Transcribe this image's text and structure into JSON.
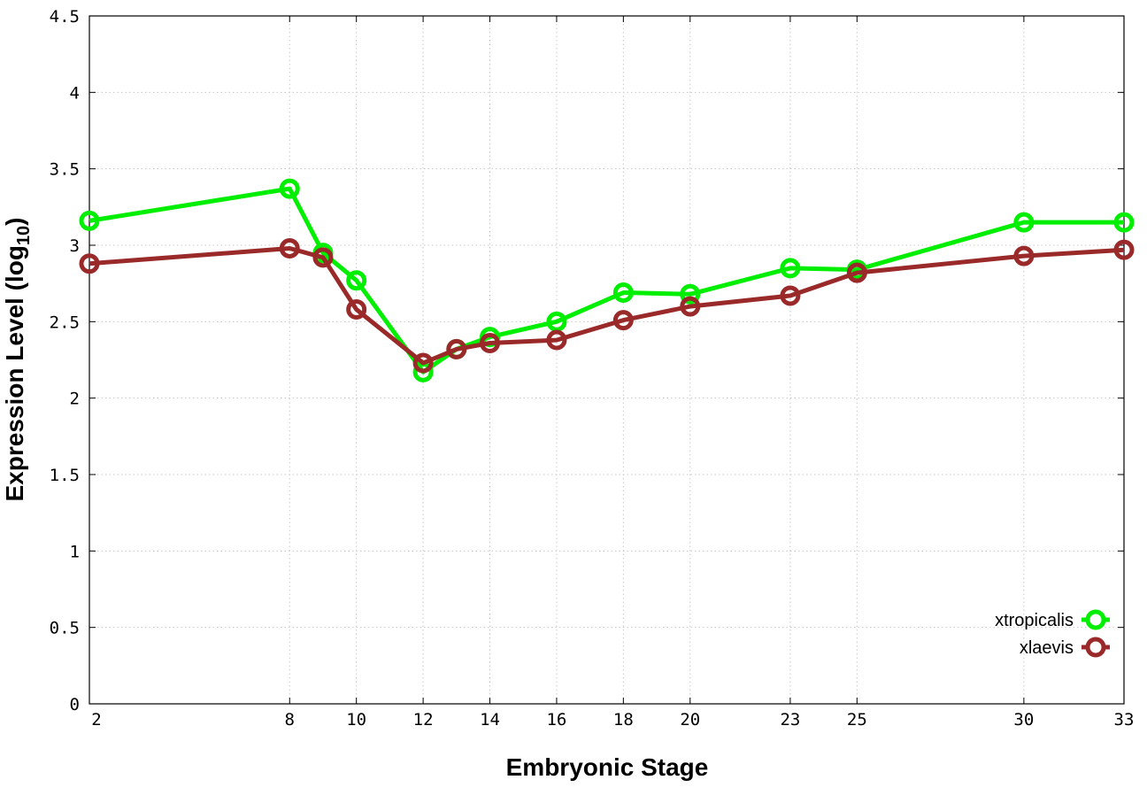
{
  "chart_data": {
    "type": "line",
    "xlabel": "Embryonic Stage",
    "ylabel_main": "Expression Level (log",
    "ylabel_sub": "10",
    "ylabel_close": ")",
    "xlim": [
      2,
      33
    ],
    "ylim": [
      0,
      4.5
    ],
    "x_ticks": [
      2,
      8,
      10,
      12,
      14,
      16,
      18,
      20,
      23,
      25,
      30,
      33
    ],
    "y_ticks": [
      0,
      0.5,
      1,
      1.5,
      2,
      2.5,
      3,
      3.5,
      4,
      4.5
    ],
    "y_tick_labels": [
      "0",
      "0.5",
      "1",
      "1.5",
      "2",
      "2.5",
      "3",
      "3.5",
      "4",
      "4.5"
    ],
    "grid": true,
    "legend_position": "bottom-right",
    "series": [
      {
        "name": "xtropicalis",
        "color": "#00ee00",
        "x": [
          2,
          8,
          9,
          10,
          12,
          13,
          14,
          16,
          18,
          20,
          23,
          25,
          30,
          33
        ],
        "y": [
          3.16,
          3.37,
          2.95,
          2.77,
          2.17,
          2.32,
          2.4,
          2.5,
          2.69,
          2.68,
          2.85,
          2.84,
          3.15,
          3.15
        ]
      },
      {
        "name": "xlaevis",
        "color": "#9a2a2a",
        "x": [
          2,
          8,
          9,
          10,
          12,
          13,
          14,
          16,
          18,
          20,
          23,
          25,
          30,
          33
        ],
        "y": [
          2.88,
          2.98,
          2.92,
          2.58,
          2.23,
          2.32,
          2.36,
          2.38,
          2.51,
          2.6,
          2.67,
          2.82,
          2.93,
          2.97
        ]
      }
    ]
  }
}
